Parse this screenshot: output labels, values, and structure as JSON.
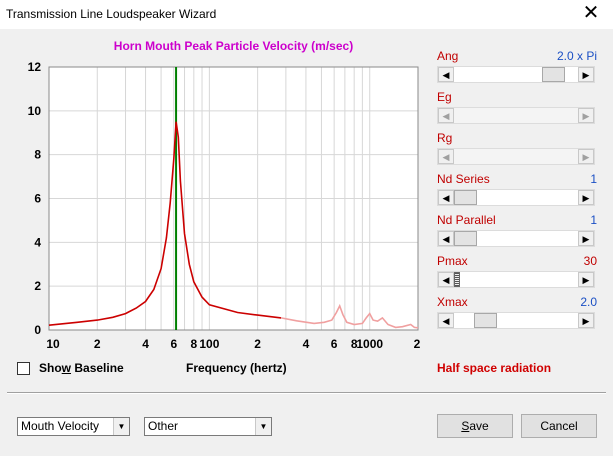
{
  "window": {
    "title": "Transmission Line Loudspeaker Wizard",
    "close_glyph": "✕"
  },
  "chart_data": {
    "type": "line",
    "title": "Horn Mouth Peak Particle Velocity (m/sec)",
    "xlabel": "Frequency (hertz)",
    "ylabel": "",
    "xscale": "log",
    "xlim": [
      10,
      2000
    ],
    "ylim": [
      0,
      12
    ],
    "grid": true,
    "x_tick_labels": [
      {
        "value": 10,
        "label": "10"
      },
      {
        "value": 20,
        "label": "2"
      },
      {
        "value": 40,
        "label": "4"
      },
      {
        "value": 60,
        "label": "6"
      },
      {
        "value": 80,
        "label": "8"
      },
      {
        "value": 100,
        "label": "100"
      },
      {
        "value": 200,
        "label": "2"
      },
      {
        "value": 400,
        "label": "4"
      },
      {
        "value": 600,
        "label": "6"
      },
      {
        "value": 800,
        "label": "8"
      },
      {
        "value": 1000,
        "label": "1000"
      },
      {
        "value": 2000,
        "label": "2"
      }
    ],
    "y_ticks": [
      0,
      2,
      4,
      6,
      8,
      10,
      12
    ],
    "marker_line": {
      "x": 62,
      "color": "#008000"
    },
    "series": [
      {
        "color": "#cc0000",
        "points": [
          [
            10,
            0.22
          ],
          [
            15,
            0.35
          ],
          [
            20,
            0.45
          ],
          [
            25,
            0.58
          ],
          [
            30,
            0.75
          ],
          [
            35,
            1.0
          ],
          [
            40,
            1.3
          ],
          [
            45,
            1.85
          ],
          [
            50,
            2.8
          ],
          [
            54,
            4.2
          ],
          [
            57,
            5.8
          ],
          [
            60,
            7.8
          ],
          [
            62,
            9.5
          ],
          [
            64,
            8.8
          ],
          [
            66,
            6.8
          ],
          [
            70,
            4.4
          ],
          [
            75,
            3.0
          ],
          [
            80,
            2.2
          ],
          [
            90,
            1.5
          ],
          [
            100,
            1.15
          ],
          [
            150,
            0.8
          ],
          [
            200,
            0.68
          ],
          [
            280,
            0.55
          ]
        ]
      },
      {
        "color": "#f0a0a0",
        "points": [
          [
            280,
            0.55
          ],
          [
            350,
            0.42
          ],
          [
            450,
            0.3
          ],
          [
            520,
            0.35
          ],
          [
            580,
            0.45
          ],
          [
            620,
            0.8
          ],
          [
            650,
            1.1
          ],
          [
            680,
            0.7
          ],
          [
            720,
            0.35
          ],
          [
            800,
            0.25
          ],
          [
            900,
            0.3
          ],
          [
            950,
            0.55
          ],
          [
            1000,
            0.75
          ],
          [
            1050,
            0.45
          ],
          [
            1120,
            0.4
          ],
          [
            1200,
            0.55
          ],
          [
            1300,
            0.25
          ],
          [
            1450,
            0.12
          ],
          [
            1600,
            0.15
          ],
          [
            1800,
            0.25
          ],
          [
            1900,
            0.12
          ],
          [
            2000,
            0.1
          ]
        ]
      }
    ]
  },
  "controls": [
    {
      "label": "Ang",
      "value": "2.0 x Pi",
      "value_color": "blue",
      "fraction": 0.87,
      "enabled": true,
      "thumb_style": "normal"
    },
    {
      "label": "Eg",
      "value": "",
      "value_color": "blue",
      "fraction": 0.0,
      "enabled": false,
      "thumb_style": "none"
    },
    {
      "label": "Rg",
      "value": "",
      "value_color": "blue",
      "fraction": 0.0,
      "enabled": false,
      "thumb_style": "none"
    },
    {
      "label": "Nd  Series",
      "value": "1",
      "value_color": "blue",
      "fraction": 0.0,
      "enabled": true,
      "thumb_style": "normal"
    },
    {
      "label": "Nd  Parallel",
      "value": "1",
      "value_color": "blue",
      "fraction": 0.0,
      "enabled": true,
      "thumb_style": "normal"
    },
    {
      "label": "Pmax",
      "value": "30",
      "value_color": "red",
      "fraction": 0.0,
      "enabled": true,
      "thumb_style": "striped"
    },
    {
      "label": "Xmax",
      "value": "2.0",
      "value_color": "blue",
      "fraction": 0.2,
      "enabled": true,
      "thumb_style": "normal"
    }
  ],
  "show_baseline": {
    "label_pre": "Sho",
    "label_accel": "w",
    "label_post": " Baseline",
    "checked": false
  },
  "status": "Half space radiation",
  "dropdowns": {
    "plot_select": "Mouth Velocity",
    "other_select": "Other"
  },
  "buttons": {
    "save": {
      "accel": "S",
      "rest": "ave"
    },
    "cancel": "Cancel"
  },
  "icons": {
    "arrow_left": "◀",
    "arrow_right": "▶",
    "dropdown": "▼"
  }
}
